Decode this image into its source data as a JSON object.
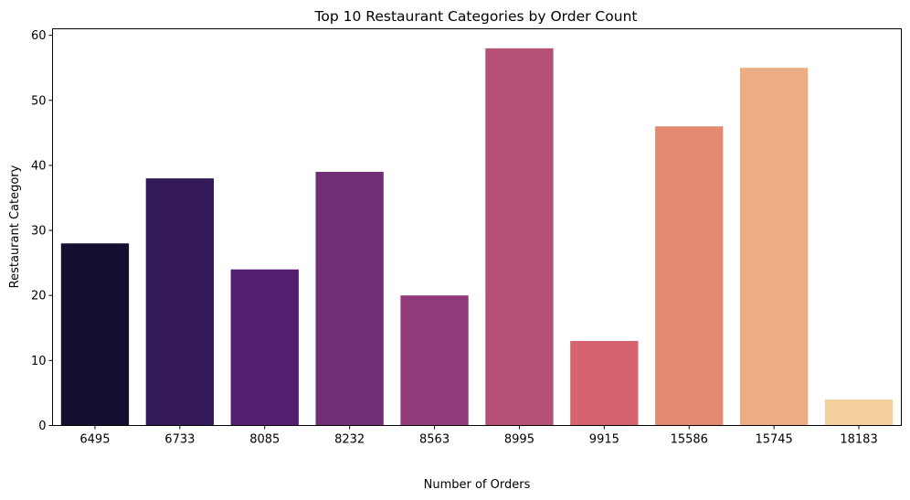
{
  "chart_data": {
    "type": "bar",
    "title": "Top 10 Restaurant Categories by Order Count",
    "xlabel": "Number of Orders",
    "ylabel": "Restaurant Category",
    "categories": [
      "6495",
      "6733",
      "8085",
      "8232",
      "8563",
      "8995",
      "9915",
      "15586",
      "15745",
      "18183"
    ],
    "values": [
      28,
      38,
      24,
      39,
      20,
      58,
      13,
      46,
      55,
      4
    ],
    "colors": [
      "#140f2e",
      "#341a58",
      "#551e6e",
      "#712e77",
      "#913979",
      "#b65077",
      "#d5646e",
      "#e58970",
      "#ecad83",
      "#f3d09d"
    ],
    "ylim": [
      0,
      61
    ],
    "yticks": [
      0,
      10,
      20,
      30,
      40,
      50,
      60
    ],
    "grid": false,
    "legend": "none"
  }
}
